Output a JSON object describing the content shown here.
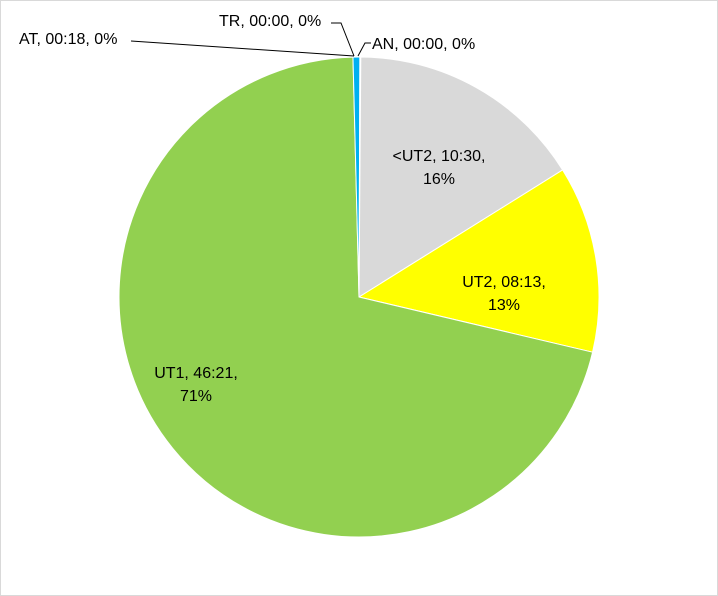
{
  "chart_data": {
    "type": "pie",
    "title": "",
    "start_angle_deg": 0,
    "direction": "clockwise",
    "slices": [
      {
        "category": "AN",
        "value_text": "00:00",
        "percent_text": "0%",
        "value": 0,
        "color": "#4472C4"
      },
      {
        "category": "<UT2",
        "value_text": "10:30",
        "percent_text": "16%",
        "value": 10.5,
        "color": "#D9D9D9"
      },
      {
        "category": "UT2",
        "value_text": "08:13",
        "percent_text": "13%",
        "value": 8.217,
        "color": "#FFFF00"
      },
      {
        "category": "UT1",
        "value_text": "46:21",
        "percent_text": "71%",
        "value": 46.35,
        "color": "#92D050"
      },
      {
        "category": "AT",
        "value_text": "00:18",
        "percent_text": "0%",
        "value": 0.3,
        "color": "#00B0F0"
      },
      {
        "category": "TR",
        "value_text": "00:00",
        "percent_text": "0%",
        "value": 0,
        "color": "#5B9BD5"
      }
    ],
    "labels": {
      "an": "AN, 00:00, 0%",
      "ut2_below_l1": "<UT2, 10:30,",
      "ut2_below_l2": "16%",
      "ut2_l1": "UT2, 08:13,",
      "ut2_l2": "13%",
      "ut1_l1": "UT1, 46:21,",
      "ut1_l2": "71%",
      "at": "AT, 00:18, 0%",
      "tr": "TR, 00:00, 0%"
    }
  }
}
